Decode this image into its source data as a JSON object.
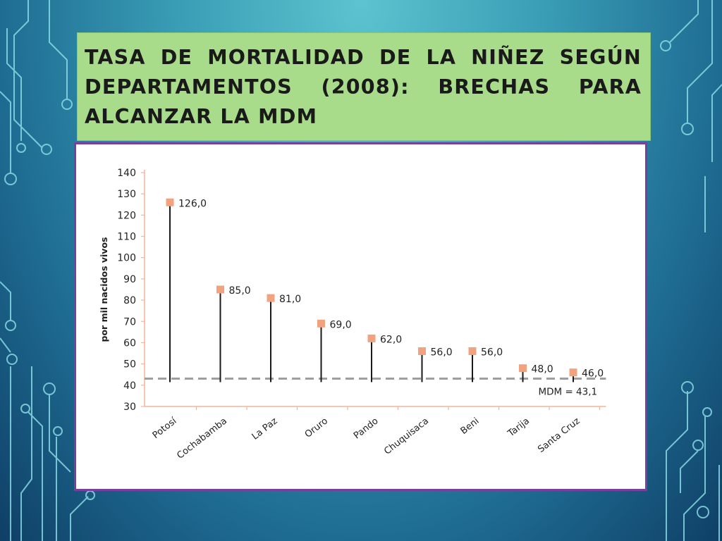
{
  "slide": {
    "title": "TASA DE MORTALIDAD DE LA NIÑEZ SEGÚN DEPARTAMENTOS (2008): BRECHAS PARA ALCANZAR LA MDM"
  },
  "colors": {
    "title_bg": "#a8dc8a",
    "frame_border": "#7a3e9c",
    "marker": "#f0a37e",
    "stem": "#1a1a1a",
    "mdm_line": "#9e9e9e",
    "axis": "#f2b59a"
  },
  "chart_data": {
    "type": "lollipop",
    "title": "",
    "xlabel": "",
    "ylabel": "por mil nacidos vivos",
    "ylim": [
      30,
      140
    ],
    "yticks": [
      30,
      40,
      50,
      60,
      70,
      80,
      90,
      100,
      110,
      120,
      130,
      140
    ],
    "categories": [
      "Potosí",
      "Cochabamba",
      "La Paz",
      "Oruro",
      "Pando",
      "Chuquisaca",
      "Beni",
      "Tarija",
      "Santa Cruz"
    ],
    "values": [
      126.0,
      85.0,
      81.0,
      69.0,
      62.0,
      56.0,
      56.0,
      48.0,
      46.0
    ],
    "value_labels": [
      "126,0",
      "85,0",
      "81,0",
      "69,0",
      "62,0",
      "56,0",
      "56,0",
      "48,0",
      "46,0"
    ],
    "reference_line": {
      "value": 43.1,
      "label": "MDM = 43,1",
      "style": "dashed"
    },
    "grid": false,
    "legend": "none"
  }
}
